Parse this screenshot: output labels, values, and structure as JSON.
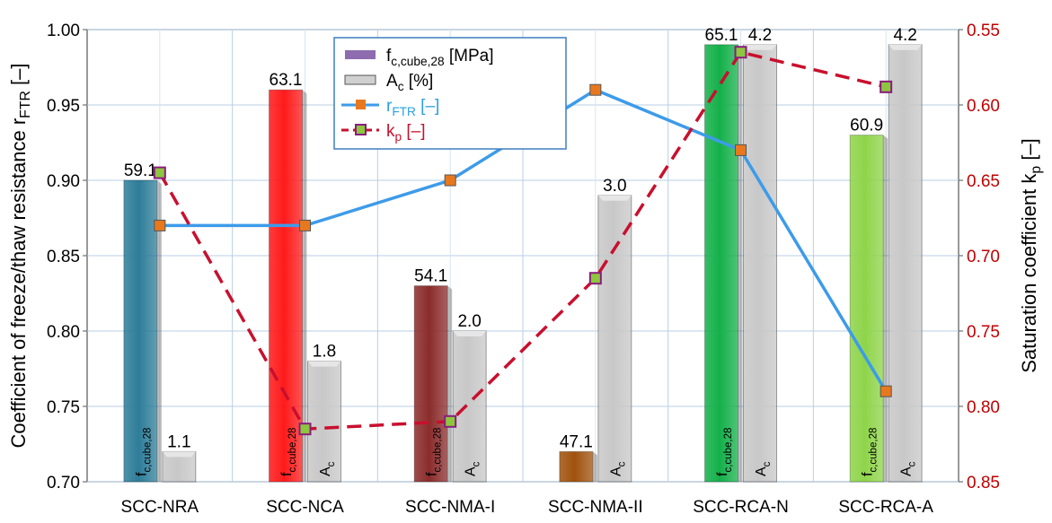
{
  "chart_data": {
    "type": "bar",
    "categories": [
      "SCC-NRA",
      "SCC-NCA",
      "SCC-NMA-I",
      "SCC-NMA-II",
      "SCC-RCA-N",
      "SCC-RCA-A"
    ],
    "left_axis": {
      "label_main": "Coefficient of freeze/thaw resistance r",
      "label_sub": "FTR",
      "label_unit": " [–]",
      "ylim": [
        0.7,
        1.0
      ],
      "ticks": [
        "0.70",
        "0.75",
        "0.80",
        "0.85",
        "0.90",
        "0.95",
        "1.00"
      ]
    },
    "right_axis": {
      "label_main": "Saturation coefficient k",
      "label_sub": "p",
      "label_unit": " [–]",
      "ylim": [
        0.85,
        0.55
      ],
      "reversed": true,
      "ticks": [
        "0.55",
        "0.60",
        "0.65",
        "0.70",
        "0.75",
        "0.80",
        "0.85"
      ]
    },
    "bars_fc": {
      "values_on_left_axis": [
        0.9,
        0.96,
        0.83,
        0.72,
        0.99,
        0.93
      ],
      "labels": [
        "59.1",
        "63.1",
        "54.1",
        "47.1",
        "65.1",
        "60.9"
      ],
      "colors": [
        "#2e7d99",
        "#ff1a1a",
        "#8b2c2c",
        "#a0520d",
        "#14b04a",
        "#8fd44a"
      ],
      "inbar_main": "f",
      "inbar_sub": "c,cube,28"
    },
    "bars_ac": {
      "values_on_left_axis": [
        0.72,
        0.78,
        0.8,
        0.89,
        0.99,
        0.99
      ],
      "labels": [
        "1.1",
        "1.8",
        "2.0",
        "3.0",
        "4.2",
        "4.2"
      ],
      "color": "#c8c8c8",
      "inbar_main": "A",
      "inbar_sub": "c",
      "show_inbar": [
        false,
        true,
        true,
        true,
        true,
        true
      ]
    },
    "r_ftr": {
      "values": [
        0.87,
        0.87,
        0.9,
        0.96,
        0.92,
        0.76
      ],
      "color": "#3d9be9",
      "marker_color": "#e8781e"
    },
    "k_p": {
      "values": [
        0.645,
        0.815,
        0.81,
        0.715,
        0.565,
        0.588
      ],
      "color": "#c8102e",
      "marker_color": "#8dc63f"
    },
    "legend": {
      "items": [
        {
          "main": "f",
          "sub": "c,cube,28",
          "unit": "  [MPa]"
        },
        {
          "main": "A",
          "sub": "c",
          "unit": "  [%]"
        },
        {
          "main": "r",
          "sub": "FTR",
          "unit": "  [–]"
        },
        {
          "main": "k",
          "sub": "p",
          "unit": "  [–]"
        }
      ],
      "placement": "top-center"
    },
    "grid": true
  }
}
